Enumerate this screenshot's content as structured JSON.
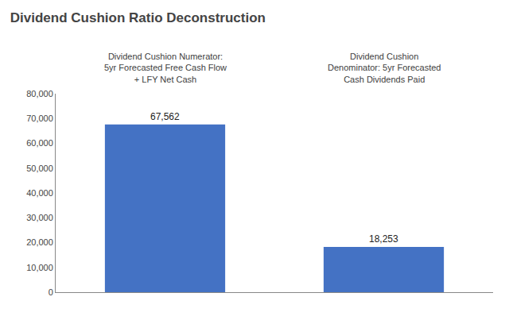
{
  "chart_data": {
    "type": "bar",
    "title": "Dividend Cushion Ratio Deconstruction",
    "categories": [
      null,
      null
    ],
    "values": [
      67562,
      18253
    ],
    "value_labels": [
      "67,562",
      "18,253"
    ],
    "data_labels": true,
    "color": "#4472C4",
    "annotations": [
      "Dividend Cushion Numerator:\n5yr Forecasted Free Cash Flow\n+ LFY Net Cash",
      "Dividend Cushion\nDenominator: 5yr Forecasted\nCash Dividends Paid"
    ],
    "ylim": [
      0,
      80000
    ],
    "yticks": [
      0,
      {
        "value": 10000,
        "label": "10,000"
      },
      {
        "value": 20000,
        "label": "20,000"
      },
      {
        "value": 30000,
        "label": "30,000"
      },
      {
        "value": 40000,
        "label": "40,000"
      },
      {
        "value": 50000,
        "label": "50,000"
      },
      {
        "value": 60000,
        "label": "60,000"
      },
      {
        "value": 70000,
        "label": "70,000"
      },
      {
        "value": 80000,
        "label": "80,000"
      }
    ],
    "tick_labels": "y",
    "grid": false
  }
}
